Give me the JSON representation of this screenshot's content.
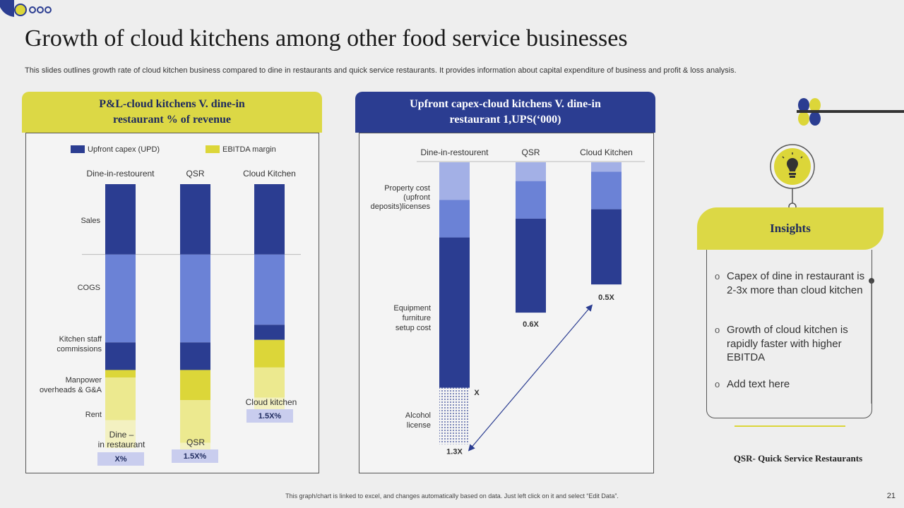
{
  "header": {
    "title": "Growth of cloud kitchens among other food service businesses",
    "subtitle": "This slides outlines growth rate of cloud kitchen business compared to dine in restaurants and quick service restaurants. It provides information about capital expenditure of business and profit & loss analysis."
  },
  "colors": {
    "navy": "#2b3d91",
    "mid_blue": "#6b82d6",
    "light_blue": "#a3b0e6",
    "yellow": "#dcd639",
    "pale_yellow": "#ece98f",
    "very_pale_yellow": "#f3f1c1",
    "badge": "#c9cdee"
  },
  "left_panel": {
    "title_line1": "P&L-cloud kitchens V. dine-in",
    "title_line2": "restaurant  % of revenue"
  },
  "right_panel": {
    "title_line1": "Upfront capex-cloud kitchens V. dine-in",
    "title_line2": "restaurant 1,UPS(‘000)"
  },
  "chart_data": [
    {
      "type": "bar",
      "stacked": true,
      "title": "P&L-cloud kitchens V. dine-in restaurant % of revenue",
      "legend": [
        "Upfront capex (UPD)",
        "EBITDA  margin"
      ],
      "categories": [
        "Dine-in-restourent",
        "QSR",
        "Cloud Kitchen"
      ],
      "row_labels": [
        "Sales",
        "COGS",
        "Kitchen staff commissions",
        "Manpower overheads & G&A",
        "Rent"
      ],
      "segments_note": "percent of revenue, top = 100",
      "columns": [
        {
          "segments": [
            {
              "label": "Sales",
              "value": 28,
              "color": "navy"
            },
            {
              "label": "COGS",
              "value": 35,
              "color": "mid_blue"
            },
            {
              "label": "Kitchen staff commissions",
              "value": 11,
              "color": "navy"
            },
            {
              "label": "EBITDA margin",
              "value": 3,
              "color": "yellow"
            },
            {
              "label": "Manpower overheads & G&A",
              "value": 17,
              "color": "pale_yellow"
            },
            {
              "label": "Rent",
              "value": 11,
              "color": "very_pale_yellow"
            }
          ]
        },
        {
          "segments": [
            {
              "label": "Sales",
              "value": 28,
              "color": "navy"
            },
            {
              "label": "COGS",
              "value": 35,
              "color": "mid_blue"
            },
            {
              "label": "Kitchen staff commissions",
              "value": 11,
              "color": "navy"
            },
            {
              "label": "EBITDA margin",
              "value": 12,
              "color": "yellow"
            },
            {
              "label": "Manpower overheads & G&A",
              "value": 17,
              "color": "pale_yellow"
            },
            {
              "label": "Rent",
              "value": 6,
              "color": "very_pale_yellow"
            }
          ]
        },
        {
          "segments": [
            {
              "label": "Sales",
              "value": 28,
              "color": "navy"
            },
            {
              "label": "COGS",
              "value": 28,
              "color": "mid_blue"
            },
            {
              "label": "Kitchen staff commissions",
              "value": 6,
              "color": "navy"
            },
            {
              "label": "EBITDA margin",
              "value": 11,
              "color": "yellow"
            },
            {
              "label": "Manpower overheads & G&A",
              "value": 12,
              "color": "pale_yellow"
            },
            {
              "label": "Rent",
              "value": 5,
              "color": "very_pale_yellow"
            }
          ]
        }
      ],
      "bottom_labels": [
        "Dine –\nin restaurant",
        "QSR",
        "Cloud kitchen"
      ],
      "badges": [
        "X%",
        "1.5X%",
        "1.5X%"
      ]
    },
    {
      "type": "bar",
      "stacked": true,
      "title": "Upfront capex-cloud kitchens V. dine-in restaurant 1,UPS('000)",
      "categories": [
        "Dine-in-restourent",
        "QSR",
        "Cloud Kitchen"
      ],
      "row_labels": [
        "Property cost\n(upfront\ndeposits)licenses",
        "Equipment\nfurniture\nsetup cost",
        "Alcohol\nlicense"
      ],
      "ylim": [
        0,
        100
      ],
      "columns": [
        {
          "total_label": "1.3X",
          "segments": [
            {
              "label": "Property cost",
              "value": 16,
              "color": "light_blue"
            },
            {
              "label": "Licenses",
              "value": 16,
              "color": "mid_blue"
            },
            {
              "label": "Equipment furniture setup cost",
              "value": 64,
              "color": "navy"
            },
            {
              "label": "Alcohol license",
              "value": 24,
              "color": "dotted"
            }
          ],
          "marker_label": "X"
        },
        {
          "total_label": "0.6X",
          "segments": [
            {
              "label": "Property cost",
              "value": 8,
              "color": "light_blue"
            },
            {
              "label": "Licenses",
              "value": 16,
              "color": "mid_blue"
            },
            {
              "label": "Equipment furniture setup cost",
              "value": 40,
              "color": "navy"
            }
          ]
        },
        {
          "total_label": "0.5X",
          "segments": [
            {
              "label": "Property cost",
              "value": 4,
              "color": "light_blue"
            },
            {
              "label": "Licenses",
              "value": 16,
              "color": "mid_blue"
            },
            {
              "label": "Equipment furniture setup cost",
              "value": 32,
              "color": "navy"
            }
          ]
        }
      ]
    }
  ],
  "insights": {
    "title": "Insights",
    "items": [
      "Capex of dine in restaurant is 2-3x more than cloud kitchen",
      "Growth of cloud kitchen is rapidly faster with higher EBITDA",
      "Add text here"
    ],
    "bullet": "o",
    "note": "QSR- Quick Service Restaurants"
  },
  "footer": "This graph/chart is linked to excel, and changes automatically based on data. Just left click on it and select “Edit Data”.",
  "page_number": "21"
}
